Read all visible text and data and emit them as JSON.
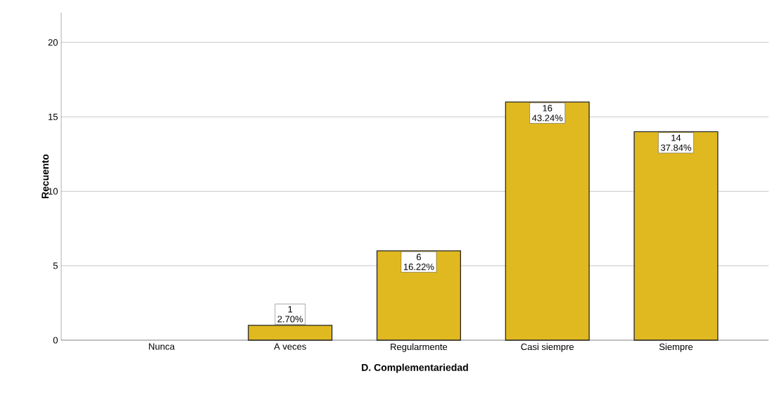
{
  "chart_data": {
    "type": "bar",
    "xlabel": "D. Complementariedad",
    "ylabel": "Recuento",
    "categories": [
      "Nunca",
      "A veces",
      "Regularmente",
      "Casi siempre",
      "Siempre"
    ],
    "values": [
      0,
      1,
      6,
      16,
      14
    ],
    "value_labels": [
      null,
      "1",
      "6",
      "16",
      "14"
    ],
    "annotations": [
      {
        "text": "2.70%",
        "x": "A veces",
        "y": 1
      },
      {
        "text": "16.22%",
        "x": "Regularmente",
        "y": 6
      },
      {
        "text": "43.24%",
        "x": "Casi siempre",
        "y": 16
      },
      {
        "text": "37.84%",
        "x": "Siempre",
        "y": 14
      }
    ],
    "color": "#e0b920",
    "ylim": [
      0,
      22
    ],
    "yticks": [
      0,
      5,
      10,
      15,
      20
    ],
    "grid": "y"
  }
}
